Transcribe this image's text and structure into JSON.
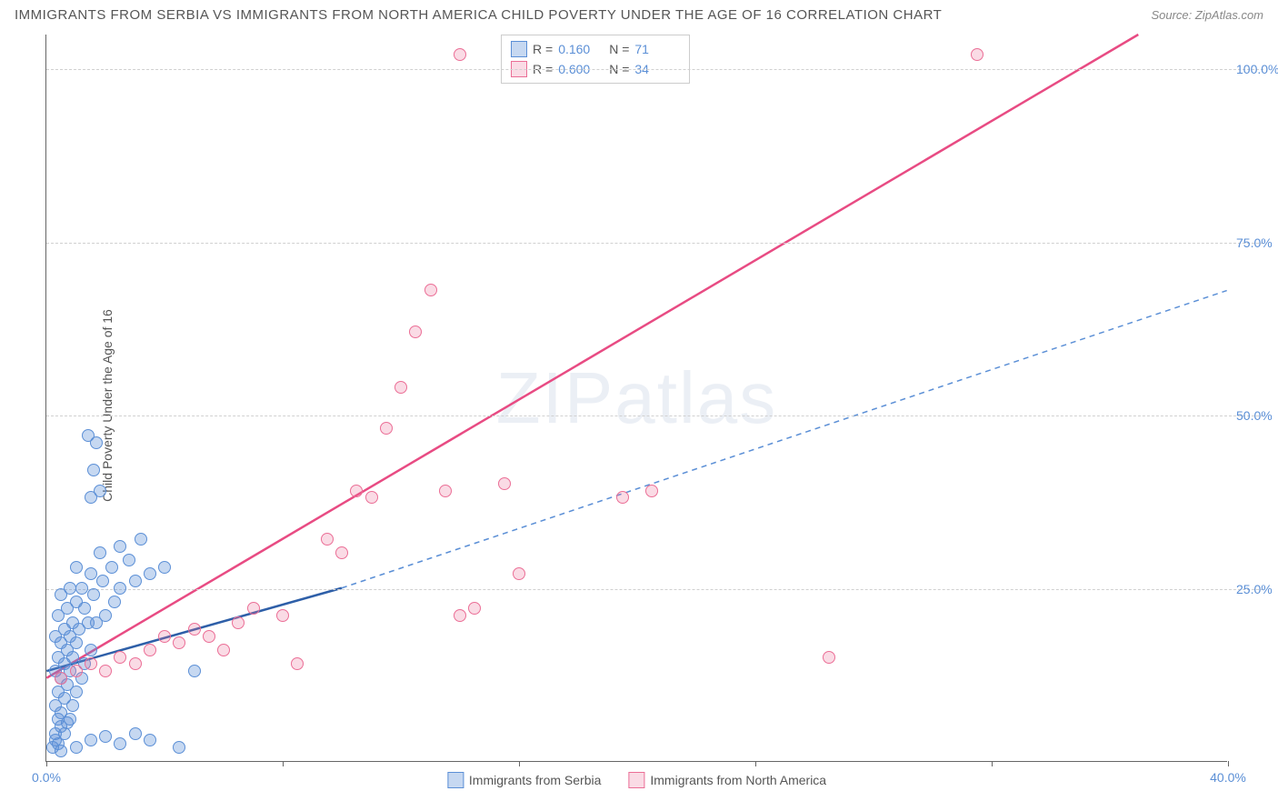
{
  "title": "IMMIGRANTS FROM SERBIA VS IMMIGRANTS FROM NORTH AMERICA CHILD POVERTY UNDER THE AGE OF 16 CORRELATION CHART",
  "source": "Source: ZipAtlas.com",
  "y_axis_label": "Child Poverty Under the Age of 16",
  "watermark": "ZIPatlas",
  "chart": {
    "type": "scatter",
    "xlim": [
      0,
      40
    ],
    "ylim": [
      0,
      105
    ],
    "x_ticks": [
      0,
      8,
      16,
      24,
      32,
      40
    ],
    "x_tick_labels": [
      "0.0%",
      "",
      "",
      "",
      "",
      "40.0%"
    ],
    "y_gridlines": [
      25,
      50,
      75,
      100
    ],
    "y_tick_labels": [
      "25.0%",
      "50.0%",
      "75.0%",
      "100.0%"
    ],
    "background_color": "#ffffff",
    "grid_color": "#d0d0d0",
    "axis_color": "#666666",
    "marker_radius": 7
  },
  "stats_legend": {
    "rows": [
      {
        "swatch": "blue",
        "r_label": "R =",
        "r_val": "0.160",
        "n_label": "N =",
        "n_val": "71"
      },
      {
        "swatch": "pink",
        "r_label": "R =",
        "r_val": "0.600",
        "n_label": "N =",
        "n_val": "34"
      }
    ]
  },
  "bottom_legend": {
    "items": [
      {
        "swatch": "blue",
        "label": "Immigrants from Serbia"
      },
      {
        "swatch": "pink",
        "label": "Immigrants from North America"
      }
    ]
  },
  "series": {
    "serbia": {
      "color_fill": "rgba(91,143,214,0.35)",
      "color_stroke": "#5b8fd6",
      "points": [
        [
          0.2,
          2
        ],
        [
          0.3,
          3
        ],
        [
          0.4,
          2.5
        ],
        [
          0.3,
          4
        ],
        [
          0.5,
          5
        ],
        [
          0.6,
          4
        ],
        [
          0.4,
          6
        ],
        [
          0.7,
          5.5
        ],
        [
          0.5,
          7
        ],
        [
          0.8,
          6
        ],
        [
          0.3,
          8
        ],
        [
          0.6,
          9
        ],
        [
          0.9,
          8
        ],
        [
          0.4,
          10
        ],
        [
          0.7,
          11
        ],
        [
          1.0,
          10
        ],
        [
          0.5,
          12
        ],
        [
          0.8,
          13
        ],
        [
          0.3,
          13
        ],
        [
          1.2,
          12
        ],
        [
          0.6,
          14
        ],
        [
          0.9,
          15
        ],
        [
          0.4,
          15
        ],
        [
          1.3,
          14
        ],
        [
          0.7,
          16
        ],
        [
          1.0,
          17
        ],
        [
          0.5,
          17
        ],
        [
          1.5,
          16
        ],
        [
          0.8,
          18
        ],
        [
          0.3,
          18
        ],
        [
          1.1,
          19
        ],
        [
          0.6,
          19
        ],
        [
          1.4,
          20
        ],
        [
          0.9,
          20
        ],
        [
          0.4,
          21
        ],
        [
          1.7,
          20
        ],
        [
          0.7,
          22
        ],
        [
          1.0,
          23
        ],
        [
          1.3,
          22
        ],
        [
          2.0,
          21
        ],
        [
          1.6,
          24
        ],
        [
          0.5,
          24
        ],
        [
          2.3,
          23
        ],
        [
          1.2,
          25
        ],
        [
          0.8,
          25
        ],
        [
          1.9,
          26
        ],
        [
          2.5,
          25
        ],
        [
          1.5,
          27
        ],
        [
          3.0,
          26
        ],
        [
          2.2,
          28
        ],
        [
          1.0,
          28
        ],
        [
          3.5,
          27
        ],
        [
          2.8,
          29
        ],
        [
          1.8,
          30
        ],
        [
          4.0,
          28
        ],
        [
          2.5,
          31
        ],
        [
          3.2,
          32
        ],
        [
          1.5,
          38
        ],
        [
          1.8,
          39
        ],
        [
          1.6,
          42
        ],
        [
          1.4,
          47
        ],
        [
          1.7,
          46
        ],
        [
          0.5,
          1.5
        ],
        [
          1.0,
          2
        ],
        [
          1.5,
          3
        ],
        [
          2.0,
          3.5
        ],
        [
          2.5,
          2.5
        ],
        [
          3.0,
          4
        ],
        [
          3.5,
          3
        ],
        [
          4.5,
          2
        ],
        [
          5.0,
          13
        ]
      ],
      "trend_solid": {
        "x1": 0,
        "y1": 13,
        "x2": 10,
        "y2": 25,
        "stroke": "#2e5fa8",
        "width": 2.5
      },
      "trend_dashed": {
        "x1": 10,
        "y1": 25,
        "x2": 40,
        "y2": 68,
        "stroke": "#5b8fd6",
        "width": 1.5,
        "dash": "6,5"
      }
    },
    "north_america": {
      "color_fill": "rgba(235,110,150,0.25)",
      "color_stroke": "#eb6e96",
      "points": [
        [
          0.5,
          12
        ],
        [
          1.0,
          13
        ],
        [
          1.5,
          14
        ],
        [
          2.0,
          13
        ],
        [
          2.5,
          15
        ],
        [
          3.0,
          14
        ],
        [
          3.5,
          16
        ],
        [
          4.0,
          18
        ],
        [
          4.5,
          17
        ],
        [
          5.0,
          19
        ],
        [
          5.5,
          18
        ],
        [
          6.0,
          16
        ],
        [
          6.5,
          20
        ],
        [
          7.0,
          22
        ],
        [
          8.0,
          21
        ],
        [
          8.5,
          14
        ],
        [
          9.5,
          32
        ],
        [
          10.0,
          30
        ],
        [
          10.5,
          39
        ],
        [
          11.0,
          38
        ],
        [
          11.5,
          48
        ],
        [
          12.0,
          54
        ],
        [
          12.5,
          62
        ],
        [
          13.0,
          68
        ],
        [
          13.5,
          39
        ],
        [
          14.0,
          21
        ],
        [
          14.5,
          22
        ],
        [
          15.5,
          40
        ],
        [
          16.0,
          27
        ],
        [
          19.5,
          38
        ],
        [
          20.5,
          39
        ],
        [
          26.5,
          15
        ],
        [
          31.5,
          102
        ],
        [
          14.0,
          102
        ]
      ],
      "trend_solid": {
        "x1": 0,
        "y1": 12,
        "x2": 37,
        "y2": 105,
        "stroke": "#e84b83",
        "width": 2.5
      }
    }
  }
}
